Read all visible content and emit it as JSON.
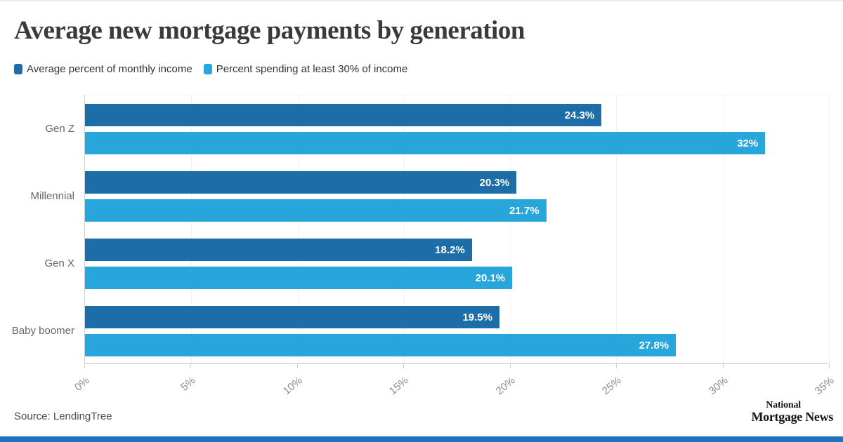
{
  "header": {
    "title": "Average new mortgage payments by generation"
  },
  "legend": [
    {
      "label": "Average percent of monthly income",
      "color": "#1d6da8"
    },
    {
      "label": "Percent spending at least 30% of income",
      "color": "#27a6db"
    }
  ],
  "chart_data": {
    "type": "bar",
    "orientation": "horizontal",
    "title": "Average new mortgage payments by generation",
    "categories": [
      "Gen Z",
      "Millennial",
      "Gen X",
      "Baby boomer"
    ],
    "series": [
      {
        "name": "Average percent of monthly income",
        "color": "#1d6da8",
        "values": [
          24.3,
          20.3,
          18.2,
          19.5
        ],
        "labels": [
          "24.3%",
          "20.3%",
          "18.2%",
          "19.5%"
        ]
      },
      {
        "name": "Percent spending at least 30% of income",
        "color": "#27a6db",
        "values": [
          32,
          21.7,
          20.1,
          27.8
        ],
        "labels": [
          "32%",
          "21.7%",
          "20.1%",
          "27.8%"
        ]
      }
    ],
    "xlim": [
      0,
      35
    ],
    "x_ticks": [
      "0%",
      "5%",
      "10%",
      "15%",
      "20%",
      "25%",
      "30%",
      "35%"
    ],
    "grid": true,
    "legend_position": "top",
    "value_labels_position": "inside-end"
  },
  "footer": {
    "source": "Source: LendingTree",
    "logo_line1": "National",
    "logo_line2": "Mortgage News"
  },
  "colors": {
    "series1": "#1d6da8",
    "series2": "#27a6db",
    "bottom_bar": "#1c75bc",
    "title_text": "#3a3a3a",
    "axis_label_text": "#8c8c8c"
  }
}
